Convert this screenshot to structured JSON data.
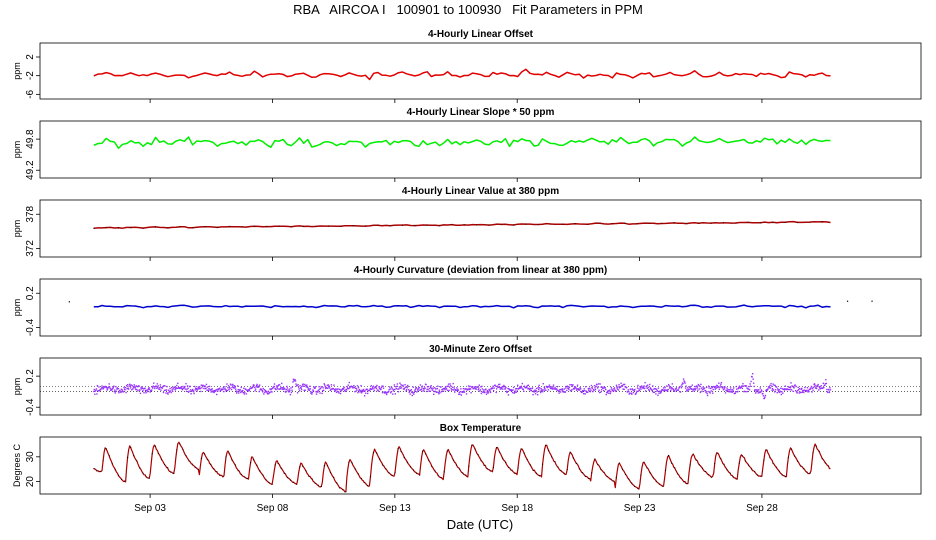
{
  "page": {
    "title": "RBA   AIRCOA I   100901 to 100930   Fit Parameters in PPM",
    "xlabel": "Date (UTC)"
  },
  "chart_data": [
    {
      "type": "line",
      "title": "4-Hourly Linear Offset",
      "ylabel": "ppm",
      "yticks": [
        2,
        -2,
        -6
      ],
      "ylim": [
        -7,
        5
      ],
      "color": "#e00000",
      "style": "line",
      "x_start": 0.7,
      "x_end": 30.8,
      "n": 180,
      "base": -1.8,
      "trend": 0.0,
      "diurnal_amp": 0.3,
      "noise": 0.35,
      "spikes": [
        [
          4.5,
          -1.4
        ],
        [
          12.0,
          -1.0
        ],
        [
          18.3,
          1.8
        ],
        [
          28.0,
          1.0
        ]
      ]
    },
    {
      "type": "line",
      "title": "4-Hourly Linear Slope * 50 ppm",
      "ylabel": "ppm",
      "yticks": [
        49.8,
        49.2
      ],
      "ylim": [
        49.05,
        50.15
      ],
      "color": "#00ee00",
      "style": "line",
      "x_start": 0.7,
      "x_end": 30.8,
      "n": 180,
      "base": 49.72,
      "trend": 0.0015,
      "diurnal_amp": 0.04,
      "noise": 0.05,
      "spikes": [
        [
          4.6,
          0.12
        ],
        [
          9.3,
          -0.1
        ],
        [
          12.7,
          0.1
        ],
        [
          19.8,
          -0.08
        ],
        [
          28.8,
          0.08
        ]
      ]
    },
    {
      "type": "line",
      "title": "4-Hourly Linear Value at 380 ppm",
      "ylabel": "ppm",
      "yticks": [
        378,
        372
      ],
      "ylim": [
        370.5,
        380.5
      ],
      "color": "#aa0000",
      "style": "line",
      "x_start": 0.7,
      "x_end": 30.8,
      "n": 180,
      "base": 375.6,
      "trend": 0.035,
      "diurnal_amp": 0.05,
      "noise": 0.06,
      "spikes": []
    },
    {
      "type": "line",
      "title": "4-Hourly Curvature (deviation from linear at 380 ppm)",
      "ylabel": "ppm",
      "yticks": [
        0.2,
        -0.4
      ],
      "ylim": [
        -0.55,
        0.45
      ],
      "color": "#0000cc",
      "style": "line",
      "x_start": 0.7,
      "x_end": 30.8,
      "n": 180,
      "base": -0.03,
      "trend": 0.0,
      "diurnal_amp": 0.01,
      "noise": 0.012,
      "spikes": [],
      "outliers": [
        [
          -0.3,
          0.05
        ],
        [
          31.5,
          0.06
        ],
        [
          32.5,
          0.06
        ]
      ]
    },
    {
      "type": "scatter",
      "title": "30-Minute Zero Offset",
      "ylabel": "ppm",
      "yticks": [
        0.2,
        -0.4
      ],
      "ylim": [
        -0.55,
        0.55
      ],
      "hlines": [
        0.0,
        -0.1
      ],
      "color": "#9933ff",
      "style": "points",
      "x_start": 0.7,
      "x_end": 30.8,
      "n": 1440,
      "base": -0.05,
      "trend": 0.0,
      "diurnal_amp": 0.04,
      "noise": 0.065,
      "spikes": [
        [
          8.9,
          0.22
        ],
        [
          24.8,
          0.2
        ],
        [
          27.6,
          0.25
        ],
        [
          28.1,
          -0.18
        ],
        [
          30.6,
          0.12
        ]
      ]
    },
    {
      "type": "line",
      "title": "Box Temperature",
      "ylabel": "Degrees C",
      "yticks": [
        30,
        20
      ],
      "ylim": [
        15,
        38
      ],
      "color": "#aa0000",
      "style": "temperature",
      "x_start": 0.7,
      "x_end": 30.8,
      "n": 720,
      "temp_max": [
        30.5,
        34,
        34.5,
        35,
        36,
        32,
        32.5,
        30,
        28.5,
        27.5,
        28,
        29,
        33,
        34,
        33,
        33,
        35,
        34,
        33.5,
        35,
        32,
        29,
        27.5,
        28,
        30.5,
        31,
        32,
        31,
        33,
        33.5,
        35
      ],
      "temp_min": [
        24,
        20,
        21,
        23,
        25,
        22,
        21,
        19,
        19,
        18,
        16,
        18,
        22,
        23,
        21,
        22,
        24,
        23,
        22,
        23,
        21,
        20,
        17,
        18,
        19,
        22,
        21,
        22,
        22,
        23,
        24
      ]
    }
  ],
  "x_axis": {
    "xlim": [
      -1.5,
      34.5
    ],
    "ticks": [
      {
        "day": 3,
        "label": "Sep 03"
      },
      {
        "day": 8,
        "label": "Sep 08"
      },
      {
        "day": 13,
        "label": "Sep 13"
      },
      {
        "day": 18,
        "label": "Sep 18"
      },
      {
        "day": 23,
        "label": "Sep 23"
      },
      {
        "day": 28,
        "label": "Sep 28"
      }
    ]
  }
}
